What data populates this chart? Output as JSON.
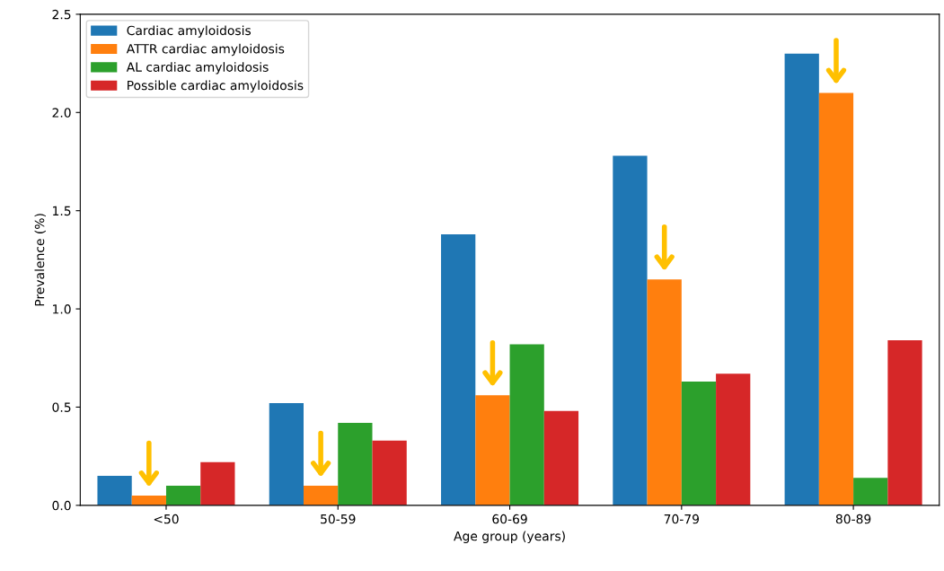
{
  "chart_data": {
    "type": "bar",
    "xlabel": "Age group (years)",
    "ylabel": "Prevalence (%)",
    "categories": [
      "<50",
      "50-59",
      "60-69",
      "70-79",
      "80-89"
    ],
    "series": [
      {
        "name": "Cardiac amyloidosis",
        "color": "#1f77b4",
        "values": [
          0.15,
          0.52,
          1.38,
          1.78,
          2.3
        ]
      },
      {
        "name": "ATTR cardiac amyloidosis",
        "color": "#ff7f0e",
        "values": [
          0.05,
          0.1,
          0.56,
          1.15,
          2.1
        ]
      },
      {
        "name": "AL cardiac amyloidosis",
        "color": "#2ca02c",
        "values": [
          0.1,
          0.42,
          0.82,
          0.63,
          0.14
        ]
      },
      {
        "name": "Possible cardiac amyloidosis",
        "color": "#d62728",
        "values": [
          0.22,
          0.33,
          0.48,
          0.67,
          0.84
        ]
      }
    ],
    "ylim": [
      0,
      2.5
    ],
    "yticks": [
      {
        "value": 0,
        "label": "0.0"
      },
      0.5,
      {
        "value": 1,
        "label": "1.0"
      },
      1.5,
      {
        "value": 2,
        "label": "2.0"
      },
      2.5
    ],
    "grid": false,
    "legend": "top left"
  }
}
